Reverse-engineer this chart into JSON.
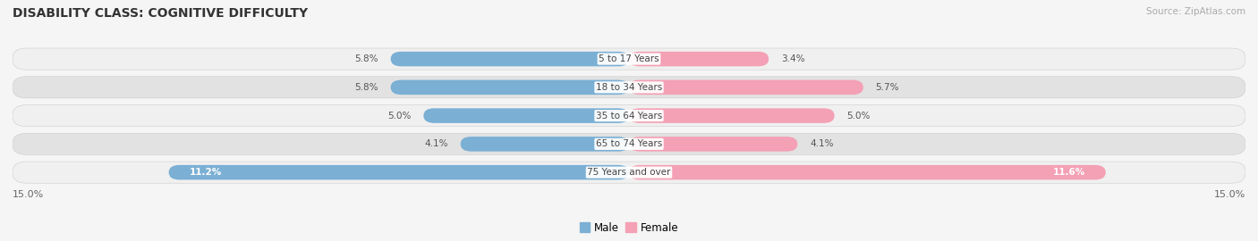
{
  "title": "DISABILITY CLASS: COGNITIVE DIFFICULTY",
  "source": "Source: ZipAtlas.com",
  "categories": [
    "5 to 17 Years",
    "18 to 34 Years",
    "35 to 64 Years",
    "65 to 74 Years",
    "75 Years and over"
  ],
  "male_values": [
    5.8,
    5.8,
    5.0,
    4.1,
    11.2
  ],
  "female_values": [
    3.4,
    5.7,
    5.0,
    4.1,
    11.6
  ],
  "max_val": 15.0,
  "male_color": "#7bafd4",
  "female_color": "#f4a0b5",
  "male_label": "Male",
  "female_label": "Female",
  "row_colors": [
    "#f5f5f5",
    "#e8e8e8"
  ],
  "title_fontsize": 10,
  "bar_height": 0.52,
  "axis_label_left": "15.0%",
  "axis_label_right": "15.0%"
}
